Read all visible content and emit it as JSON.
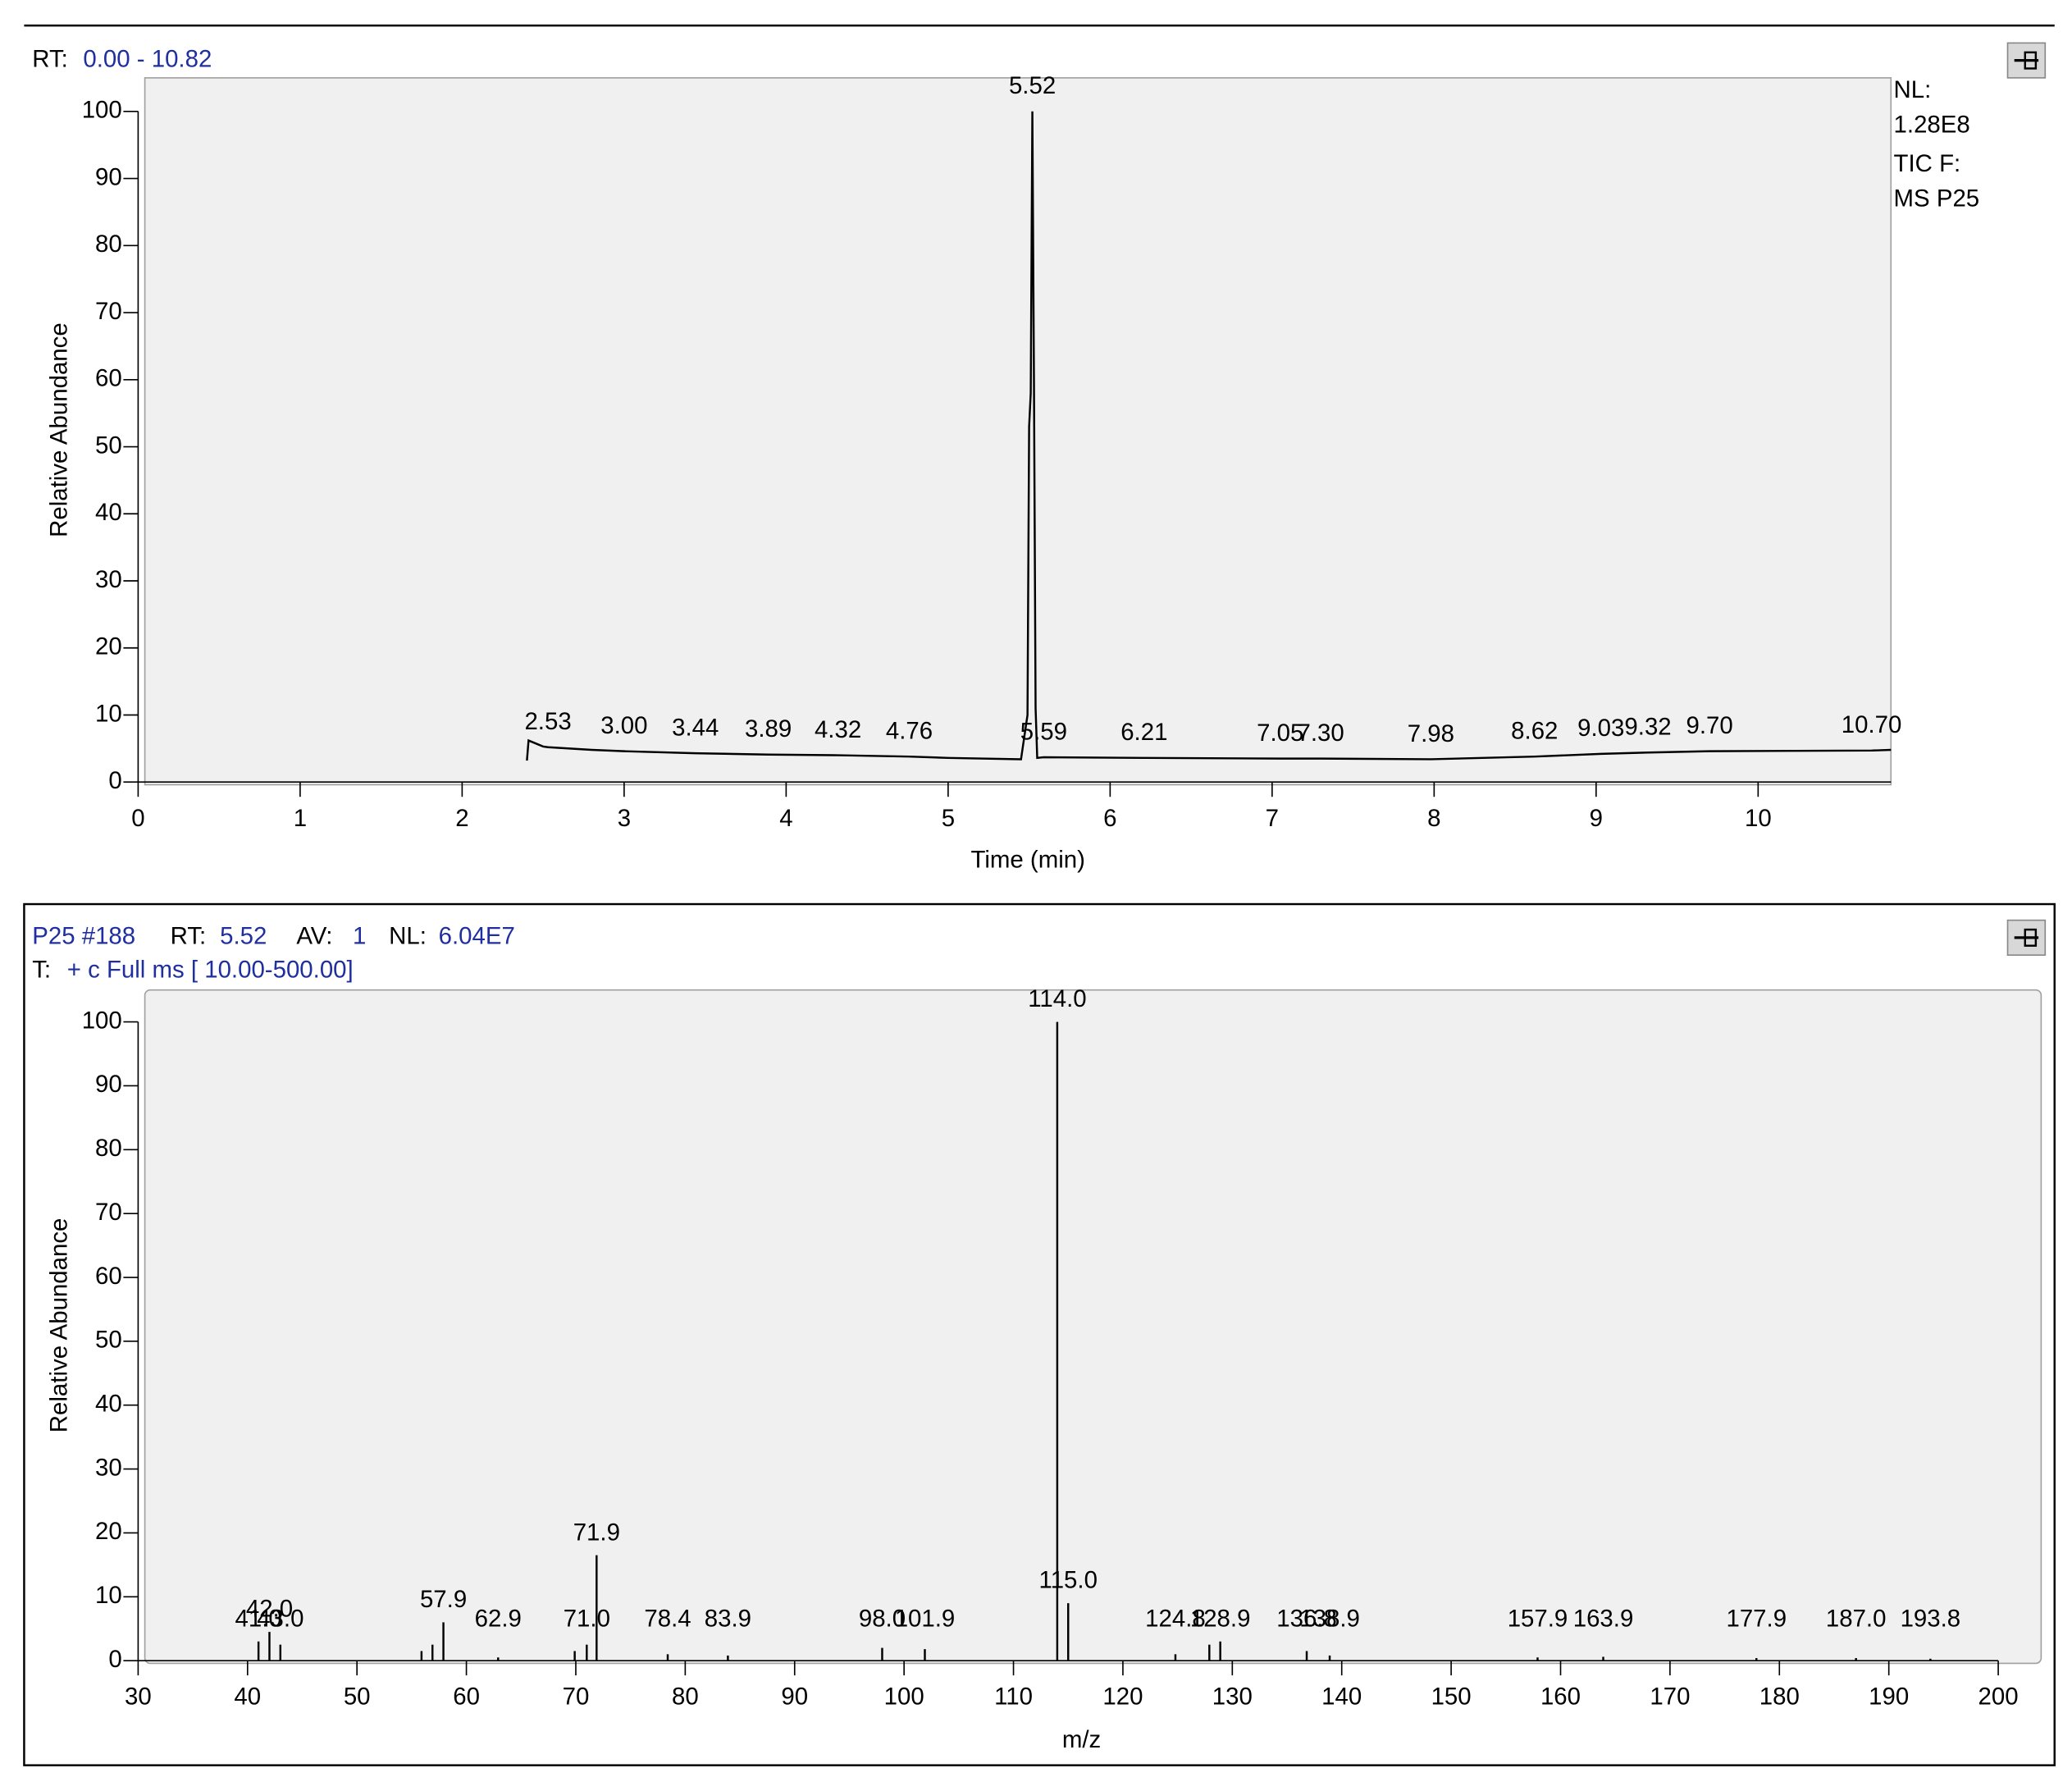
{
  "chart_data": [
    {
      "type": "line",
      "header": {
        "rt_label": "RT:",
        "rt_range": "0.00 - 10.82"
      },
      "normalization": [
        "NL:",
        "1.28E8",
        "TIC F:",
        "MS P25"
      ],
      "ylabel": "Relative Abundance",
      "xlabel": "Time (min)",
      "xlim": [
        0,
        10.82
      ],
      "ylim": [
        0,
        105
      ],
      "xticks": [
        0,
        1,
        2,
        3,
        4,
        5,
        6,
        7,
        8,
        9,
        10
      ],
      "yticks": [
        0,
        10,
        20,
        30,
        40,
        50,
        60,
        70,
        80,
        90,
        100
      ],
      "color": "#000000",
      "x": [
        2.4,
        2.41,
        2.5,
        2.53,
        2.8,
        3.0,
        3.44,
        3.89,
        4.32,
        4.76,
        5.0,
        5.45,
        5.49,
        5.5,
        5.51,
        5.52,
        5.53,
        5.54,
        5.55,
        5.59,
        6.21,
        7.05,
        7.3,
        7.98,
        8.62,
        9.03,
        9.32,
        9.7,
        10.7,
        10.82
      ],
      "values": [
        3.2,
        6.2,
        5.3,
        5.2,
        4.8,
        4.6,
        4.3,
        4.1,
        4.0,
        3.8,
        3.6,
        3.4,
        10,
        53,
        58,
        100,
        59,
        11,
        3.6,
        3.7,
        3.6,
        3.5,
        3.5,
        3.4,
        3.8,
        4.2,
        4.4,
        4.6,
        4.7,
        4.8
      ],
      "annotations": [
        {
          "value": 2.53,
          "label": "2.53"
        },
        {
          "value": 3.0,
          "label": "3.00"
        },
        {
          "value": 3.44,
          "label": "3.44"
        },
        {
          "value": 3.89,
          "label": "3.89"
        },
        {
          "value": 4.32,
          "label": "4.32"
        },
        {
          "value": 4.76,
          "label": "4.76"
        },
        {
          "value": 5.52,
          "label": "5.52"
        },
        {
          "value": 5.59,
          "label": "5.59"
        },
        {
          "value": 6.21,
          "label": "6.21"
        },
        {
          "value": 7.05,
          "label": "7.05"
        },
        {
          "value": 7.3,
          "label": "7.30"
        },
        {
          "value": 7.98,
          "label": "7.98"
        },
        {
          "value": 8.62,
          "label": "8.62"
        },
        {
          "value": 9.03,
          "label": "9.03"
        },
        {
          "value": 9.32,
          "label": "9.32"
        },
        {
          "value": 9.7,
          "label": "9.70"
        },
        {
          "value": 10.7,
          "label": "10.70"
        }
      ]
    },
    {
      "type": "bar",
      "header": {
        "scan": "P25 #188",
        "rt_label": "RT:",
        "rt": "5.52",
        "av_label": "AV:",
        "av": "1",
        "nl_label": "NL:",
        "nl": "6.04E7",
        "filter_label": "T:",
        "filter": "+ c Full ms [ 10.00-500.00]"
      },
      "ylabel": "Relative Abundance",
      "xlabel": "m/z",
      "xlim": [
        30,
        200
      ],
      "ylim": [
        0,
        105
      ],
      "xticks": [
        30,
        40,
        50,
        60,
        70,
        80,
        90,
        100,
        110,
        120,
        130,
        140,
        150,
        160,
        170,
        180,
        190,
        200
      ],
      "yticks": [
        0,
        10,
        20,
        30,
        40,
        50,
        60,
        70,
        80,
        90,
        100
      ],
      "color": "#000000",
      "x": [
        41.0,
        42.0,
        43.0,
        55.9,
        56.9,
        57.9,
        62.9,
        69.9,
        71.0,
        71.9,
        78.4,
        83.9,
        98.0,
        101.9,
        114.0,
        115.0,
        124.8,
        127.9,
        128.9,
        136.8,
        138.9,
        157.9,
        163.9,
        177.9,
        187.0,
        193.8
      ],
      "values": [
        3,
        4.5,
        2.5,
        1.5,
        2.5,
        6,
        0.5,
        1.5,
        2.5,
        16.5,
        1,
        0.8,
        2,
        1.8,
        100,
        9,
        1,
        2.5,
        3,
        1.5,
        0.8,
        0.5,
        0.6,
        0.4,
        0.4,
        0.3
      ],
      "x_labels": [
        "41.0",
        "42.0",
        "43.0",
        null,
        null,
        "57.9",
        "62.9",
        null,
        "71.0",
        "71.9",
        "78.4",
        "83.9",
        "98.0",
        "101.9",
        "114.0",
        "115.0",
        "124.8",
        null,
        "128.9",
        "136.8",
        "138.9",
        "157.9",
        "163.9",
        "177.9",
        "187.0",
        "193.8"
      ]
    }
  ]
}
